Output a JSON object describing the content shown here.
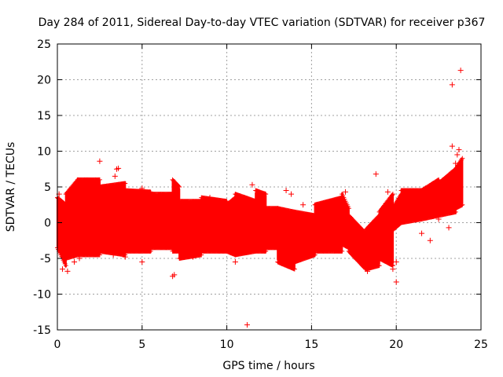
{
  "chart_data": {
    "type": "scatter",
    "title": "Day 284 of 2011, Sidereal Day-to-day VTEC variation (SDTVAR) for receiver p367",
    "xlabel": "GPS time / hours",
    "ylabel": "SDTVAR / TECUs",
    "xlim": [
      0,
      25
    ],
    "ylim": [
      -15,
      25
    ],
    "xticks": [
      0,
      5,
      10,
      15,
      20,
      25
    ],
    "yticks": [
      -15,
      -10,
      -5,
      0,
      5,
      10,
      15,
      20,
      25
    ],
    "grid": true,
    "marker": "+",
    "color": "#ff0000",
    "band_segments": [
      {
        "x0": 0.0,
        "x1": 0.5,
        "upper": [
          3.5,
          2.5
        ],
        "lower": [
          -3.5,
          -6.0
        ]
      },
      {
        "x0": 0.5,
        "x1": 1.2,
        "upper": [
          4.0,
          6.0
        ],
        "lower": [
          -5.0,
          -4.5
        ]
      },
      {
        "x0": 1.2,
        "x1": 2.5,
        "upper": [
          6.0,
          6.0
        ],
        "lower": [
          -4.5,
          -4.5
        ]
      },
      {
        "x0": 2.5,
        "x1": 4.0,
        "upper": [
          5.0,
          5.5
        ],
        "lower": [
          -4.0,
          -4.5
        ]
      },
      {
        "x0": 4.0,
        "x1": 5.5,
        "upper": [
          4.5,
          4.3
        ],
        "lower": [
          -4.0,
          -4.0
        ]
      },
      {
        "x0": 5.5,
        "x1": 6.8,
        "upper": [
          4.0,
          4.0
        ],
        "lower": [
          -3.5,
          -3.5
        ]
      },
      {
        "x0": 6.8,
        "x1": 7.2,
        "upper": [
          6.0,
          5.0
        ],
        "lower": [
          -4.0,
          -4.0
        ]
      },
      {
        "x0": 7.2,
        "x1": 8.5,
        "upper": [
          3.0,
          3.0
        ],
        "lower": [
          -5.0,
          -4.5
        ]
      },
      {
        "x0": 8.5,
        "x1": 10.0,
        "upper": [
          3.5,
          3.0
        ],
        "lower": [
          -4.0,
          -4.0
        ]
      },
      {
        "x0": 10.0,
        "x1": 10.5,
        "upper": [
          2.5,
          3.5
        ],
        "lower": [
          -4.0,
          -4.5
        ]
      },
      {
        "x0": 10.5,
        "x1": 11.7,
        "upper": [
          4.0,
          3.0
        ],
        "lower": [
          -4.5,
          -4.0
        ]
      },
      {
        "x0": 11.7,
        "x1": 12.3,
        "upper": [
          4.5,
          4.0
        ],
        "lower": [
          -4.0,
          -4.0
        ]
      },
      {
        "x0": 12.3,
        "x1": 13.0,
        "upper": [
          2.0,
          2.0
        ],
        "lower": [
          -3.5,
          -3.5
        ]
      },
      {
        "x0": 13.0,
        "x1": 14.0,
        "upper": [
          2.0,
          1.5
        ],
        "lower": [
          -5.5,
          -6.5
        ]
      },
      {
        "x0": 14.0,
        "x1": 15.2,
        "upper": [
          1.5,
          1.0
        ],
        "lower": [
          -5.5,
          -4.5
        ]
      },
      {
        "x0": 15.2,
        "x1": 16.8,
        "upper": [
          2.5,
          3.5
        ],
        "lower": [
          -4.0,
          -4.0
        ]
      },
      {
        "x0": 16.8,
        "x1": 17.2,
        "upper": [
          4.0,
          2.0
        ],
        "lower": [
          -3.0,
          -3.5
        ]
      },
      {
        "x0": 17.2,
        "x1": 18.2,
        "upper": [
          1.0,
          -1.5
        ],
        "lower": [
          -4.0,
          -6.5
        ]
      },
      {
        "x0": 18.2,
        "x1": 19.0,
        "upper": [
          -1.0,
          1.0
        ],
        "lower": [
          -6.5,
          -6.0
        ]
      },
      {
        "x0": 19.0,
        "x1": 19.8,
        "upper": [
          1.5,
          4.0
        ],
        "lower": [
          -5.0,
          -6.0
        ]
      },
      {
        "x0": 19.8,
        "x1": 20.3,
        "upper": [
          2.0,
          4.0
        ],
        "lower": [
          -1.0,
          0.0
        ]
      },
      {
        "x0": 20.3,
        "x1": 21.5,
        "upper": [
          4.5,
          4.5
        ],
        "lower": [
          0.0,
          0.5
        ]
      },
      {
        "x0": 21.5,
        "x1": 22.5,
        "upper": [
          4.5,
          6.0
        ],
        "lower": [
          0.5,
          1.0
        ]
      },
      {
        "x0": 22.5,
        "x1": 23.5,
        "upper": [
          5.5,
          7.5
        ],
        "lower": [
          1.0,
          1.5
        ]
      },
      {
        "x0": 23.5,
        "x1": 23.9,
        "upper": [
          7.5,
          9.0
        ],
        "lower": [
          2.0,
          2.5
        ]
      }
    ],
    "outliers": [
      [
        0.1,
        4.0
      ],
      [
        0.3,
        -6.5
      ],
      [
        0.6,
        -6.8
      ],
      [
        1.0,
        -5.5
      ],
      [
        1.3,
        -5.0
      ],
      [
        2.5,
        8.6
      ],
      [
        3.5,
        7.5
      ],
      [
        3.6,
        7.6
      ],
      [
        3.4,
        6.5
      ],
      [
        3.3,
        -4.5
      ],
      [
        3.8,
        -3.8
      ],
      [
        4.0,
        -4.8
      ],
      [
        5.0,
        4.8
      ],
      [
        5.0,
        -5.5
      ],
      [
        6.8,
        -7.5
      ],
      [
        6.9,
        -7.3
      ],
      [
        8.0,
        -4.8
      ],
      [
        8.3,
        2.5
      ],
      [
        9.0,
        3.5
      ],
      [
        9.3,
        -3.0
      ],
      [
        10.5,
        -5.5
      ],
      [
        11.2,
        -14.3
      ],
      [
        11.5,
        5.3
      ],
      [
        12.0,
        3.5
      ],
      [
        13.5,
        4.5
      ],
      [
        13.8,
        4.0
      ],
      [
        14.5,
        2.5
      ],
      [
        16.5,
        3.0
      ],
      [
        17.0,
        4.3
      ],
      [
        18.3,
        -6.8
      ],
      [
        18.8,
        6.8
      ],
      [
        19.5,
        4.3
      ],
      [
        19.8,
        -6.5
      ],
      [
        20.0,
        -8.3
      ],
      [
        20.0,
        -5.5
      ],
      [
        21.5,
        -1.5
      ],
      [
        22.0,
        -2.5
      ],
      [
        23.3,
        19.3
      ],
      [
        23.3,
        10.7
      ],
      [
        23.6,
        9.5
      ],
      [
        23.8,
        21.3
      ],
      [
        23.7,
        10.2
      ],
      [
        23.5,
        8.3
      ],
      [
        23.1,
        -0.7
      ],
      [
        22.5,
        0.5
      ]
    ]
  }
}
